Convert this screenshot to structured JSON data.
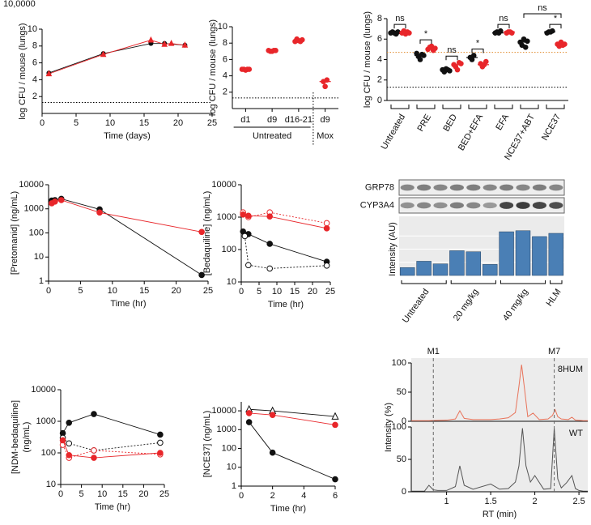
{
  "chart_data": [
    {
      "type": "line",
      "cropped_label": "10,0000",
      "x_label": "Time (days)",
      "y_label": "log CFU / mouse (lungs)",
      "xlim": [
        0,
        25
      ],
      "xticks": [
        0,
        5,
        10,
        15,
        20,
        25
      ],
      "ylim": [
        0,
        10
      ],
      "yticks": [
        2,
        4,
        6,
        8,
        10
      ],
      "reference_lines": [
        {
          "value": 1.3,
          "color": "#000000"
        }
      ],
      "series": [
        {
          "color": "#111111",
          "marker": "circle",
          "fill": "filled",
          "size": 2.5,
          "x": [
            1,
            9,
            16,
            18,
            21
          ],
          "values": [
            4.8,
            7.1,
            8.3,
            8.3,
            8.1
          ]
        },
        {
          "color": "#e8262a",
          "marker": "triangle",
          "fill": "filled",
          "size": 2.5,
          "x": [
            1,
            9,
            16,
            18,
            19,
            21
          ],
          "values": [
            4.7,
            7.0,
            8.7,
            8.2,
            8.3,
            8.1
          ]
        }
      ]
    },
    {
      "type": "strip",
      "y_label": "log CFU / mouse (lungs)",
      "categories": [
        "d1",
        "d9",
        "d16-21",
        "d9"
      ],
      "groups": [
        {
          "label": "Untreated",
          "from": 0,
          "to": 2
        },
        {
          "label": "Mox",
          "from": 3,
          "to": 3
        }
      ],
      "ylim": [
        0,
        10
      ],
      "yticks": [
        2,
        4,
        6,
        8,
        10
      ],
      "reference_lines": [
        {
          "value": 1.3,
          "color": "#000000"
        }
      ],
      "series": [
        {
          "color": "#e8262a",
          "values": [
            [
              4.8,
              4.8,
              4.7,
              4.8,
              4.8
            ],
            [
              7.1,
              7.0,
              7.0,
              7.1,
              7.1
            ],
            [
              8.2,
              8.5,
              8.3,
              8.2,
              8.4
            ],
            [
              3.3,
              2.7,
              3.5
            ]
          ],
          "medians": [
            4.8,
            7.05,
            8.35,
            3.3
          ]
        }
      ]
    },
    {
      "type": "strip",
      "y_label": "log CFU / mouse (lungs)",
      "rotate_labels": true,
      "categories": [
        "Untreated",
        "PRE",
        "BED",
        "BED+EFA",
        "EFA",
        "NCE37+ABT",
        "NCE37"
      ],
      "ylim": [
        0,
        8
      ],
      "yticks": [
        0,
        2,
        4,
        6,
        8
      ],
      "reference_lines": [
        {
          "value": 4.7,
          "color": "#e08a2c"
        },
        {
          "value": 1.3,
          "color": "#000000"
        }
      ],
      "series": [
        {
          "color": "#111111",
          "values": [
            [
              6.6,
              6.7,
              6.6,
              6.5,
              6.7
            ],
            [
              4.6,
              4.3,
              4.0,
              4.5,
              4.4
            ],
            [
              3.0,
              2.8,
              3.1,
              3.0,
              2.9
            ],
            [
              4.2,
              4.0,
              4.4
            ],
            [
              6.6,
              6.7,
              6.6,
              6.8
            ],
            [
              5.7,
              5.4,
              6.0,
              5.2,
              5.8
            ],
            [
              6.6,
              6.7,
              6.7,
              6.8
            ]
          ],
          "medians": [
            6.6,
            4.4,
            3.0,
            4.2,
            6.6,
            5.7,
            6.7
          ]
        },
        {
          "color": "#e8262a",
          "values": [
            [
              6.6,
              6.8,
              6.5,
              6.7,
              6.6
            ],
            [
              5.0,
              5.2,
              5.3,
              4.9,
              5.1
            ],
            [
              3.5,
              3.3,
              3.0,
              3.7,
              3.6
            ],
            [
              3.6,
              3.3,
              3.5,
              3.8
            ],
            [
              6.6,
              6.7,
              6.7,
              6.6
            ],
            [],
            [
              5.5,
              5.3,
              5.7,
              5.4,
              5.5
            ]
          ],
          "medians": [
            6.6,
            5.1,
            3.5,
            3.5,
            6.7,
            null,
            5.5
          ]
        }
      ],
      "significance": [
        {
          "text": "ns",
          "pair": [
            [
              0,
              0
            ],
            [
              0,
              1
            ]
          ]
        },
        {
          "text": "*",
          "pair": [
            [
              1,
              0
            ],
            [
              1,
              1
            ]
          ]
        },
        {
          "text": "ns",
          "pair": [
            [
              2,
              0
            ],
            [
              2,
              1
            ]
          ]
        },
        {
          "text": "*",
          "pair": [
            [
              3,
              0
            ],
            [
              3,
              1
            ]
          ]
        },
        {
          "text": "ns",
          "pair": [
            [
              4,
              0
            ],
            [
              4,
              1
            ]
          ]
        },
        {
          "text": "ns",
          "pair": [
            [
              5,
              0
            ],
            [
              6,
              1
            ]
          ]
        },
        {
          "text": "*",
          "pair": [
            [
              6,
              0
            ],
            [
              6,
              1
            ]
          ]
        }
      ]
    },
    {
      "type": "line",
      "log_y": true,
      "x_label": "Time (hr)",
      "y_label": "[Pretomanid] (ng/mL)",
      "xlim": [
        0,
        25
      ],
      "xticks": [
        0,
        5,
        10,
        15,
        20,
        25
      ],
      "ylim": [
        1,
        10000
      ],
      "yticks": [
        1,
        10,
        100,
        1000,
        10000
      ],
      "series": [
        {
          "color": "#111111",
          "marker": "circle",
          "fill": "filled",
          "x": [
            0.5,
            1,
            2,
            8,
            24
          ],
          "values": [
            2200,
            2300,
            2600,
            950,
            1.8
          ]
        },
        {
          "color": "#e8262a",
          "marker": "circle",
          "fill": "filled",
          "x": [
            0.5,
            1,
            2,
            8,
            24
          ],
          "values": [
            1700,
            2000,
            2300,
            700,
            110
          ]
        }
      ]
    },
    {
      "type": "line",
      "log_y": true,
      "x_label": "Time (hr)",
      "y_label": "[Bedaquiline] (ng/mL)",
      "xlim": [
        0,
        25
      ],
      "xticks": [
        0,
        5,
        10,
        15,
        20,
        25
      ],
      "ylim": [
        10,
        10000
      ],
      "yticks": [
        10,
        100,
        1000,
        10000
      ],
      "series": [
        {
          "color": "#e8262a",
          "marker": "circle",
          "fill": "open",
          "dash": true,
          "x": [
            0.5,
            2,
            8,
            24
          ],
          "values": [
            1400,
            1000,
            1400,
            650
          ]
        },
        {
          "color": "#e8262a",
          "marker": "circle",
          "fill": "filled",
          "x": [
            0.5,
            2,
            8,
            24
          ],
          "values": [
            1200,
            1100,
            1050,
            450
          ]
        },
        {
          "color": "#111111",
          "marker": "circle",
          "fill": "filled",
          "x": [
            0.5,
            2,
            8,
            24
          ],
          "values": [
            360,
            300,
            150,
            42
          ]
        },
        {
          "color": "#111111",
          "marker": "circle",
          "fill": "open",
          "dash": true,
          "x": [
            1,
            2,
            8,
            24
          ],
          "values": [
            260,
            33,
            26,
            32
          ]
        }
      ]
    },
    {
      "type": "bar",
      "blot_labels": [
        "GRP78",
        "CYP3A4"
      ],
      "y_label": "Intensity (AU)",
      "color": "#4a7fb5",
      "ylim": [
        0,
        1
      ],
      "values": [
        0.15,
        0.27,
        0.22,
        0.47,
        0.45,
        0.21,
        0.83,
        0.85,
        0.74,
        0.8
      ],
      "groups": [
        {
          "label": "Untreated",
          "from": 0,
          "to": 2
        },
        {
          "label": "20 mg/kg",
          "from": 3,
          "to": 5
        },
        {
          "label": "40 mg/kg",
          "from": 6,
          "to": 8
        },
        {
          "label": "HLM",
          "from": 9,
          "to": 9
        }
      ]
    },
    {
      "type": "line",
      "log_y": true,
      "x_label": "Time (hr)",
      "y_label": [
        "[NDM-bedaquiline]",
        "(ng/mL)"
      ],
      "xlim": [
        0,
        25
      ],
      "xticks": [
        0,
        5,
        10,
        15,
        20,
        25
      ],
      "ylim": [
        10,
        10000
      ],
      "yticks": [
        10,
        100,
        1000,
        10000
      ],
      "series": [
        {
          "color": "#111111",
          "marker": "circle",
          "fill": "filled",
          "x": [
            0.5,
            2,
            8,
            24
          ],
          "values": [
            420,
            900,
            1700,
            380
          ]
        },
        {
          "color": "#111111",
          "marker": "circle",
          "fill": "open",
          "dash": true,
          "x": [
            0.5,
            2,
            8,
            24
          ],
          "values": [
            300,
            200,
            120,
            210
          ]
        },
        {
          "color": "#e8262a",
          "marker": "circle",
          "fill": "open",
          "dash": true,
          "x": [
            0.5,
            2,
            8,
            24
          ],
          "values": [
            180,
            70,
            120,
            90
          ]
        },
        {
          "color": "#e8262a",
          "marker": "circle",
          "fill": "filled",
          "x": [
            0.5,
            2,
            8,
            24
          ],
          "values": [
            250,
            85,
            70,
            100
          ]
        }
      ]
    },
    {
      "type": "line",
      "log_y": true,
      "x_label": "Time (hr)",
      "y_label": "[NCE37] (ng/mL)",
      "xlim": [
        0,
        6
      ],
      "xticks": [
        0,
        2,
        4,
        6
      ],
      "ylim": [
        1,
        30000
      ],
      "yticks": [
        1,
        10,
        100,
        1000,
        10000
      ],
      "series": [
        {
          "color": "#111111",
          "marker": "triangle",
          "fill": "open",
          "x": [
            0.5,
            2,
            6
          ],
          "values": [
            12000,
            10000,
            5000
          ]
        },
        {
          "color": "#e8262a",
          "marker": "circle",
          "fill": "filled",
          "x": [
            0.5,
            2,
            6
          ],
          "values": [
            7500,
            6000,
            1800
          ]
        },
        {
          "color": "#111111",
          "marker": "circle",
          "fill": "filled",
          "x": [
            0.5,
            2,
            6
          ],
          "values": [
            2500,
            60,
            2.3
          ]
        }
      ]
    },
    {
      "type": "chromatogram",
      "x_label": "RT (min)",
      "y_label": "Intensity (%)",
      "background": "#ececec",
      "xlim": [
        0.6,
        2.6
      ],
      "xticks": [
        1,
        1.5,
        2,
        2.5
      ],
      "ylim": [
        0,
        100
      ],
      "yticks": [
        0,
        50,
        100
      ],
      "markers": [
        {
          "label": "M1",
          "x": 0.85
        },
        {
          "label": "M7",
          "x": 2.22
        }
      ],
      "panels": [
        {
          "label": "8HUM",
          "color": "#e8735a",
          "x": [
            0.6,
            0.8,
            1.0,
            1.1,
            1.15,
            1.2,
            1.3,
            1.5,
            1.6,
            1.7,
            1.78,
            1.82,
            1.85,
            1.88,
            1.92,
            1.98,
            2.05,
            2.15,
            2.2,
            2.23,
            2.26,
            2.3,
            2.38,
            2.42,
            2.46,
            2.55,
            2.6
          ],
          "values": [
            1,
            1,
            2,
            4,
            18,
            5,
            3,
            3,
            4,
            6,
            15,
            60,
            97,
            60,
            8,
            14,
            3,
            4,
            10,
            20,
            8,
            4,
            3,
            7,
            2,
            1,
            1
          ]
        },
        {
          "label": "WT",
          "color": "#555555",
          "x": [
            0.6,
            0.75,
            0.8,
            0.85,
            0.9,
            1.0,
            1.1,
            1.15,
            1.2,
            1.3,
            1.5,
            1.6,
            1.7,
            1.78,
            1.82,
            1.86,
            1.9,
            1.95,
            2.0,
            2.1,
            2.18,
            2.22,
            2.26,
            2.3,
            2.36,
            2.42,
            2.46,
            2.5,
            2.55,
            2.6
          ],
          "values": [
            1,
            1,
            10,
            3,
            2,
            2,
            8,
            40,
            10,
            4,
            12,
            4,
            5,
            15,
            40,
            98,
            40,
            15,
            25,
            4,
            5,
            98,
            20,
            6,
            14,
            25,
            5,
            2,
            1,
            1
          ]
        }
      ]
    }
  ]
}
